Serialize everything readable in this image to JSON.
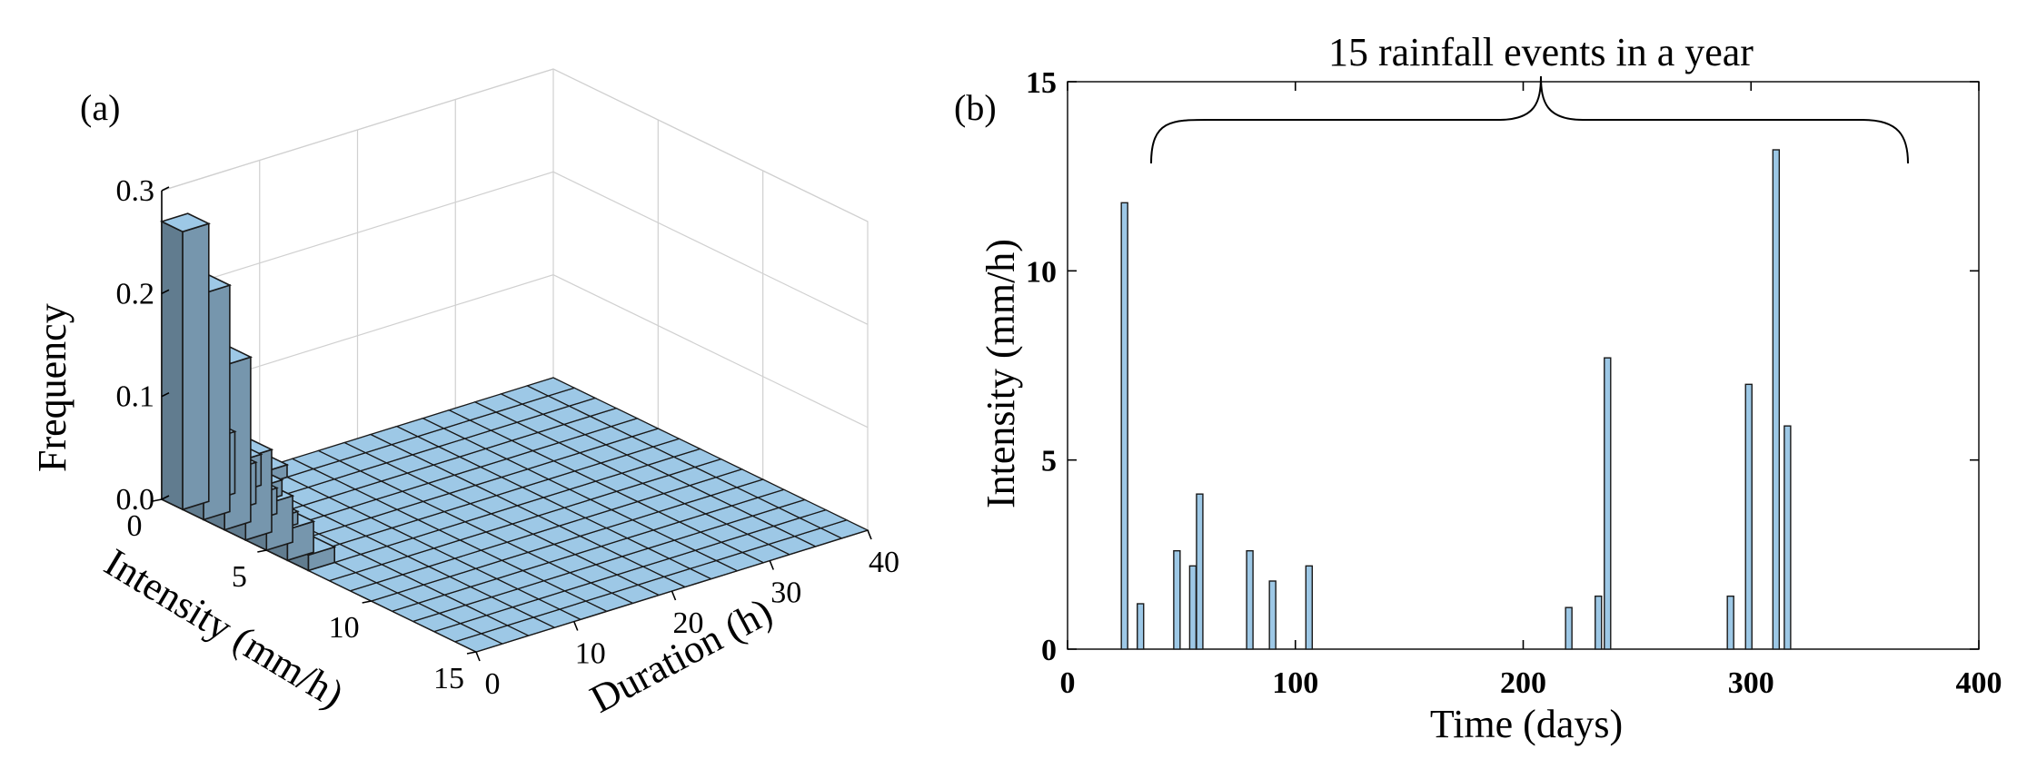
{
  "panels": {
    "a_label": "(a)",
    "b_label": "(b)"
  },
  "chart_data": [
    {
      "type": "bar3d",
      "panel": "(a)",
      "xlabel": "Intensity (mm/h)",
      "ylabel": "Duration (h)",
      "zlabel": "Frequency",
      "x_ticks": [
        "0",
        "5",
        "10",
        "15"
      ],
      "y_ticks": [
        "0",
        "10",
        "20",
        "30",
        "40"
      ],
      "z_ticks": [
        "0.0",
        "0.1",
        "0.2",
        "0.3"
      ],
      "xlim": [
        0,
        15
      ],
      "ylim": [
        0,
        40
      ],
      "zlim": [
        0,
        0.3
      ],
      "grid": true,
      "bar_color": "#9dc8e6",
      "bars": [
        {
          "intensity_bin": 1,
          "duration_bin": 1,
          "frequency": 0.27
        },
        {
          "intensity_bin": 2,
          "duration_bin": 1,
          "frequency": 0.22
        },
        {
          "intensity_bin": 3,
          "duration_bin": 1,
          "frequency": 0.16
        },
        {
          "intensity_bin": 4,
          "duration_bin": 1,
          "frequency": 0.08
        },
        {
          "intensity_bin": 5,
          "duration_bin": 1,
          "frequency": 0.045
        },
        {
          "intensity_bin": 6,
          "duration_bin": 1,
          "frequency": 0.03
        },
        {
          "intensity_bin": 7,
          "duration_bin": 1,
          "frequency": 0.015
        },
        {
          "intensity_bin": 1,
          "duration_bin": 2,
          "frequency": 0.06
        },
        {
          "intensity_bin": 2,
          "duration_bin": 2,
          "frequency": 0.04
        },
        {
          "intensity_bin": 3,
          "duration_bin": 2,
          "frequency": 0.025
        },
        {
          "intensity_bin": 4,
          "duration_bin": 2,
          "frequency": 0.012
        },
        {
          "intensity_bin": 1,
          "duration_bin": 3,
          "frequency": 0.03
        },
        {
          "intensity_bin": 2,
          "duration_bin": 3,
          "frequency": 0.015
        },
        {
          "intensity_bin": 1,
          "duration_bin": 4,
          "frequency": 0.012
        }
      ]
    },
    {
      "type": "bar",
      "panel": "(b)",
      "annotation": "15 rainfall events in a year",
      "xlabel": "Time (days)",
      "ylabel": "Intensity (mm/h)",
      "xlim": [
        0,
        400
      ],
      "ylim": [
        0,
        15
      ],
      "x_ticks": [
        "0",
        "100",
        "200",
        "300",
        "400"
      ],
      "y_ticks": [
        "0",
        "5",
        "10",
        "15"
      ],
      "bar_color": "#9dc8e6",
      "series": [
        {
          "x": [
            25,
            32,
            48,
            55,
            58,
            80,
            90,
            106,
            220,
            233,
            237,
            291,
            299,
            311,
            316
          ],
          "values": [
            11.8,
            1.2,
            2.6,
            2.2,
            4.1,
            2.6,
            1.8,
            2.2,
            1.1,
            1.4,
            7.7,
            1.4,
            7.0,
            13.2,
            5.9
          ]
        }
      ]
    }
  ]
}
